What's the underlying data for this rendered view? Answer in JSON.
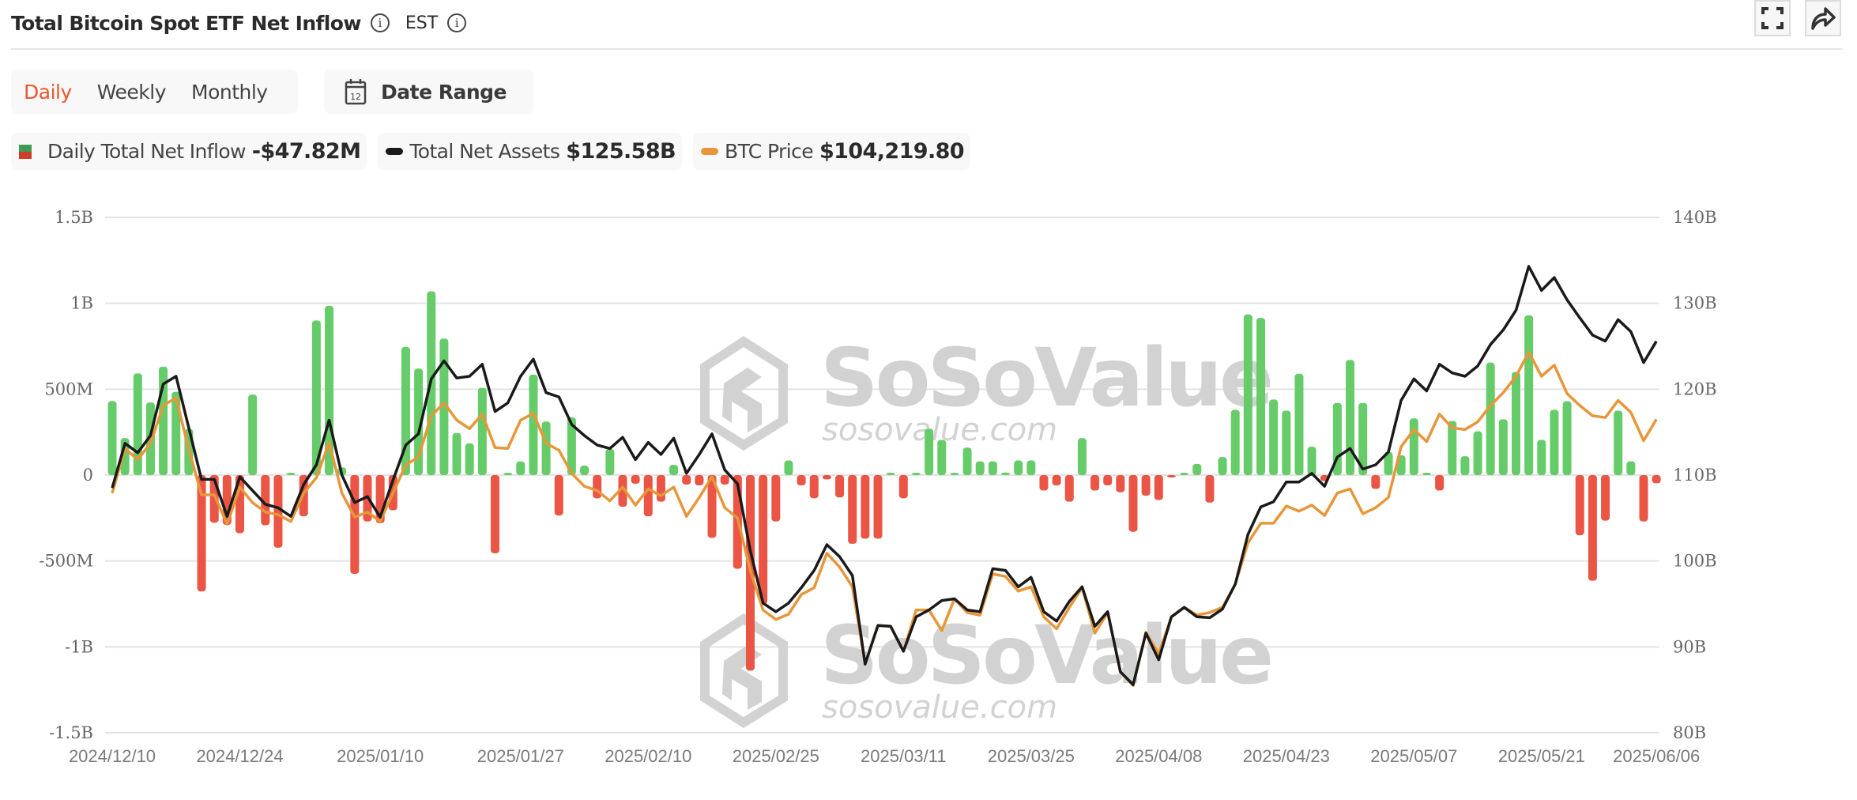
{
  "header": {
    "title": "Total Bitcoin Spot ETF Net Inflow",
    "timezone": "EST",
    "info_icon": "info-icon",
    "fullscreen_icon": "fullscreen-icon",
    "share_icon": "share-icon"
  },
  "periods": [
    {
      "label": "Daily",
      "active": true
    },
    {
      "label": "Weekly",
      "active": false
    },
    {
      "label": "Monthly",
      "active": false
    }
  ],
  "date_range": {
    "label": "Date Range",
    "icon": "calendar-icon",
    "icon_text": "12"
  },
  "legend": [
    {
      "label": "Daily Total Net Inflow",
      "value": "-$47.82M",
      "swatch": "bar",
      "colors": [
        "#3f9b55",
        "#cf3d2a"
      ]
    },
    {
      "label": "Total Net Assets",
      "value": "$125.58B",
      "swatch": "line",
      "color": "#1a1a1a"
    },
    {
      "label": "BTC Price",
      "value": "$104,219.80",
      "swatch": "line",
      "color": "#e8963a"
    }
  ],
  "watermark": {
    "brand": "SoSoValue",
    "url": "sosovalue.com"
  },
  "colors": {
    "positive_bar": "#66cc6a",
    "negative_bar": "#ea5545",
    "net_assets_line": "#1a1a1a",
    "btc_price_line": "#e8963a",
    "grid": "#e3e3e3",
    "accent": "#e8572e"
  },
  "chart_data": {
    "type": "bar+line",
    "title": "Total Bitcoin Spot ETF Net Inflow",
    "x_tick_labels": [
      "2024/12/10",
      "2024/12/24",
      "2025/01/10",
      "2025/01/27",
      "2025/02/10",
      "2025/02/25",
      "2025/03/11",
      "2025/03/25",
      "2025/04/08",
      "2025/04/23",
      "2025/05/07",
      "2025/05/21",
      "2025/06/06"
    ],
    "x_tick_index": [
      0,
      10,
      21,
      32,
      42,
      52,
      62,
      72,
      82,
      92,
      102,
      112,
      121
    ],
    "left_axis": {
      "label": "Daily Total Net Inflow",
      "ticks": [
        "1.5B",
        "1B",
        "500M",
        "0",
        "-500M",
        "-1B",
        "-1.5B"
      ],
      "ylim": [
        -1500,
        1500
      ],
      "unit": "M USD"
    },
    "right_axis": {
      "label": "Total Net Assets",
      "ticks": [
        "140B",
        "130B",
        "120B",
        "110B",
        "100B",
        "90B",
        "80B"
      ],
      "ylim": [
        80,
        140
      ],
      "unit": "B USD"
    },
    "grid": true,
    "legend_position": "top-left",
    "series": [
      {
        "name": "Daily Total Net Inflow",
        "type": "bar",
        "axis": "left",
        "unit": "M USD",
        "values": [
          431,
          215,
          592,
          423,
          631,
          485,
          269,
          -677,
          -277,
          -290,
          -338,
          469,
          -292,
          -423,
          3,
          -240,
          900,
          985,
          45,
          -575,
          -270,
          -280,
          -205,
          746,
          620,
          1070,
          795,
          245,
          185,
          508,
          -455,
          10,
          80,
          585,
          312,
          -235,
          336,
          55,
          -135,
          152,
          -184,
          -50,
          -240,
          -155,
          60,
          -55,
          -60,
          -365,
          -55,
          -545,
          -1138,
          -750,
          -270,
          85,
          -60,
          -135,
          -25,
          -130,
          -400,
          -370,
          -370,
          3,
          -135,
          10,
          270,
          205,
          5,
          160,
          80,
          80,
          15,
          85,
          85,
          -90,
          -60,
          -155,
          215,
          -90,
          -60,
          -100,
          -330,
          -120,
          -145,
          -2,
          2,
          65,
          -160,
          105,
          380,
          935,
          915,
          440,
          375,
          590,
          165,
          -35,
          420,
          670,
          420,
          -80,
          135,
          115,
          330,
          2,
          -90,
          315,
          110,
          255,
          655,
          325,
          600,
          930,
          205,
          380,
          430,
          -350,
          -615,
          -265,
          375,
          80,
          -270,
          -47.82
        ]
      },
      {
        "name": "Total Net Assets",
        "type": "line",
        "axis": "right",
        "unit": "B USD",
        "values": [
          108.5,
          113.7,
          112.6,
          114.6,
          120.6,
          121.5,
          115.5,
          109.5,
          109.5,
          105.2,
          109.8,
          108.2,
          106.6,
          106.2,
          105.2,
          108.9,
          111.2,
          116.4,
          110.0,
          106.8,
          107.5,
          105.1,
          109.4,
          113.5,
          114.8,
          121.2,
          123.3,
          121.3,
          121.5,
          122.9,
          117.4,
          118.4,
          121.5,
          123.5,
          119.6,
          119.1,
          115.9,
          114.6,
          113.5,
          113.1,
          114.4,
          111.8,
          113.8,
          112.4,
          114.3,
          110.2,
          112.4,
          114.8,
          110.6,
          109.0,
          101.2,
          95.1,
          94.1,
          95.1,
          96.9,
          98.9,
          101.9,
          100.5,
          98.3,
          88.0,
          92.5,
          92.4,
          89.5,
          93.5,
          94.3,
          95.4,
          95.6,
          94.3,
          94.1,
          99.1,
          98.9,
          97.0,
          98.1,
          94.1,
          93.0,
          95.3,
          97.0,
          92.4,
          94.1,
          87.1,
          85.6,
          91.6,
          88.5,
          93.5,
          94.6,
          93.5,
          93.4,
          94.4,
          97.3,
          103.1,
          106.3,
          106.9,
          109.2,
          109.2,
          110.2,
          108.7,
          112.1,
          113.1,
          110.7,
          111.2,
          112.7,
          118.7,
          121.2,
          119.8,
          122.9,
          121.9,
          121.5,
          122.7,
          125.2,
          126.9,
          129.2,
          134.3,
          131.5,
          133.0,
          130.4,
          128.3,
          126.3,
          125.6,
          128.1,
          126.7,
          123.1,
          125.58
        ]
      },
      {
        "name": "BTC Price",
        "type": "line",
        "axis": "right-scaled",
        "last_value": "104,219.80",
        "values": [
          107.9,
          113.1,
          111.8,
          113.7,
          118.1,
          119.0,
          113.0,
          107.7,
          107.7,
          104.3,
          108.6,
          106.8,
          105.7,
          105.4,
          104.6,
          107.9,
          109.7,
          113.8,
          107.9,
          105.1,
          105.7,
          104.6,
          107.9,
          111.2,
          112.1,
          116.9,
          118.4,
          116.4,
          115.4,
          117.1,
          113.2,
          113.1,
          116.4,
          117.2,
          113.7,
          112.9,
          110.2,
          108.7,
          108.2,
          107.0,
          108.6,
          106.5,
          108.4,
          107.6,
          108.6,
          105.2,
          107.4,
          109.8,
          106.2,
          105.0,
          98.9,
          94.3,
          93.2,
          93.8,
          96.1,
          96.9,
          100.9,
          99.3,
          97.0,
          88.0,
          92.5,
          92.4,
          89.5,
          94.3,
          94.3,
          91.9,
          95.6,
          94.0,
          93.7,
          98.5,
          98.2,
          96.5,
          97.0,
          93.5,
          92.1,
          94.6,
          96.9,
          91.6,
          94.0,
          87.1,
          85.5,
          91.7,
          89.2,
          93.5,
          94.6,
          93.7,
          94.0,
          94.6,
          97.3,
          102.1,
          104.4,
          104.4,
          106.4,
          105.8,
          106.5,
          105.3,
          107.9,
          108.4,
          105.5,
          106.2,
          107.4,
          113.3,
          115.3,
          113.9,
          117.1,
          115.5,
          115.3,
          116.2,
          118.1,
          119.6,
          121.5,
          124.3,
          121.5,
          122.8,
          119.5,
          118.1,
          116.9,
          116.7,
          118.7,
          117.3,
          114.0,
          116.5
        ]
      }
    ]
  }
}
